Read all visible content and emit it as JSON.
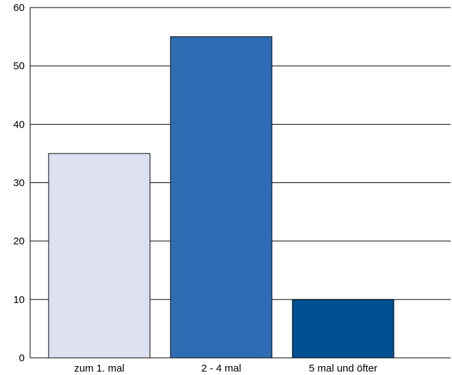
{
  "chart_data": {
    "type": "bar",
    "title": "",
    "xlabel": "",
    "ylabel": "",
    "categories": [
      "zum 1. mal",
      "2 - 4 mal",
      "5 mal und öfter"
    ],
    "values": [
      35,
      55,
      10
    ],
    "ylim": [
      0,
      60
    ],
    "yticks": [
      "0",
      "10",
      "20",
      "30",
      "40",
      "50",
      "60"
    ],
    "grid": true,
    "legend": "none",
    "colors": [
      "#dde0f0",
      "#2e6db4",
      "#004f93"
    ],
    "edge_color": "#000000",
    "grid_color": "#000000"
  }
}
